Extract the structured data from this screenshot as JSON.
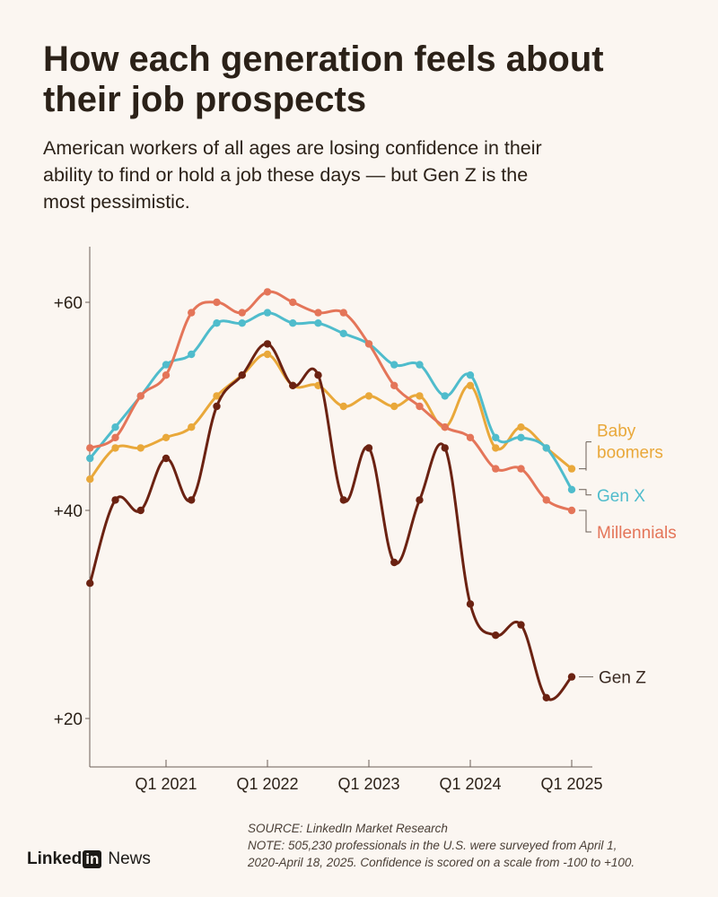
{
  "title": "How each generation feels about their job prospects",
  "subtitle": "American workers of all ages are losing confidence in their ability to find or hold a job these days — but Gen Z is the most pessimistic.",
  "footer": {
    "source": "SOURCE: LinkedIn Market Research",
    "note_line1": "NOTE: 505,230 professionals in the U.S. were surveyed from April 1,",
    "note_line2": "2020-April 18, 2025. Confidence is scored on a scale from -100 to +100."
  },
  "brand": {
    "linked": "Linked",
    "in": "in",
    "news": "News"
  },
  "colors": {
    "background": "#fbf6f1",
    "baby_boomers": "#e9a83a",
    "gen_x": "#4fbccc",
    "millennials": "#e47559",
    "gen_z": "#6b2212",
    "axis": "#6b5f56",
    "text": "#2b2118"
  },
  "chart_data": {
    "type": "line",
    "title": "How each generation feels about their job prospects",
    "x_ticks": [
      "Q1 2021",
      "Q1 2022",
      "Q1 2023",
      "Q1 2024",
      "Q1 2025"
    ],
    "x_tick_values": [
      2021.0,
      2022.0,
      2023.0,
      2024.0,
      2025.0
    ],
    "xlim": [
      2020.15,
      2025.35
    ],
    "y_ticks": [
      "+20",
      "+40",
      "+60"
    ],
    "y_tick_values": [
      20,
      40,
      60
    ],
    "ylim": [
      15,
      65
    ],
    "grid": false,
    "x": [
      2020.25,
      2020.5,
      2020.75,
      2021.0,
      2021.25,
      2021.5,
      2021.75,
      2022.0,
      2022.25,
      2022.5,
      2022.75,
      2023.0,
      2023.25,
      2023.5,
      2023.75,
      2024.0,
      2024.25,
      2024.5,
      2024.75,
      2025.0
    ],
    "series": [
      {
        "name": "Baby boomers",
        "label_lines": [
          "Baby",
          "boomers"
        ],
        "color_key": "baby_boomers",
        "values": [
          43,
          46,
          46,
          47,
          48,
          51,
          53,
          55,
          52,
          52,
          50,
          51,
          50,
          51,
          48,
          52,
          46,
          48,
          46,
          44
        ]
      },
      {
        "name": "Gen X",
        "label_lines": [
          "Gen X"
        ],
        "color_key": "gen_x",
        "values": [
          45,
          48,
          51,
          54,
          55,
          58,
          58,
          59,
          58,
          58,
          57,
          56,
          54,
          54,
          51,
          53,
          47,
          47,
          46,
          42
        ]
      },
      {
        "name": "Millennials",
        "label_lines": [
          "Millennials"
        ],
        "color_key": "millennials",
        "values": [
          46,
          47,
          51,
          53,
          59,
          60,
          59,
          61,
          60,
          59,
          59,
          56,
          52,
          50,
          48,
          47,
          44,
          44,
          41,
          40
        ]
      },
      {
        "name": "Gen Z",
        "label_lines": [
          "Gen Z"
        ],
        "color_key": "gen_z",
        "values": [
          33,
          41,
          40,
          45,
          41,
          50,
          53,
          56,
          52,
          53,
          41,
          46,
          35,
          41,
          46,
          31,
          28,
          29,
          22,
          24
        ]
      }
    ]
  }
}
